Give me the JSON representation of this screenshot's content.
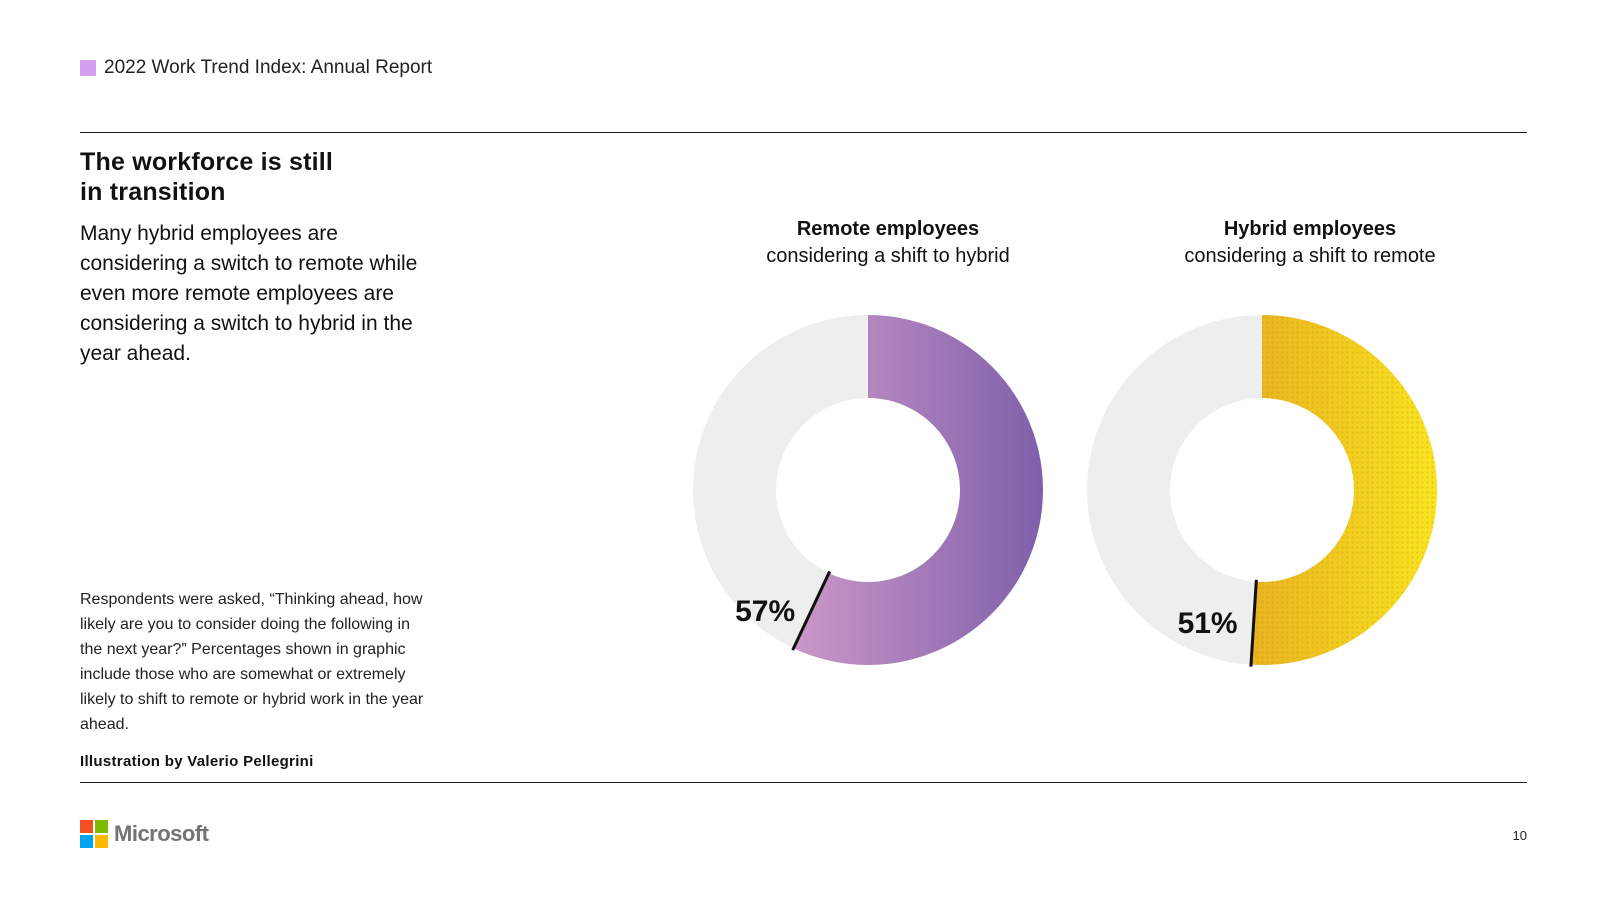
{
  "header": {
    "title": "2022 Work Trend Index: Annual Report",
    "swatch_color": "#d79ff0"
  },
  "main": {
    "heading_line1": "The workforce is still",
    "heading_line2": "in transition",
    "intro": "Many hybrid employees are considering a switch to remote while even more remote employees are considering a switch to hybrid in the year ahead.",
    "footnote": "Respondents were asked, “Thinking ahead, how likely are you to consider doing the following in the next year?” Percentages shown in graphic include those who are somewhat or extremely likely to shift to remote or hybrid work in the year ahead.",
    "credit": "Illustration by Valerio Pellegrini"
  },
  "chart_data": [
    {
      "type": "pie",
      "style": "donut",
      "title": "Remote employees",
      "subtitle": "considering a shift to hybrid",
      "value": 57,
      "label": "57%",
      "unit": "%",
      "fill_colors": [
        "#cc97c8",
        "#7e60aa"
      ],
      "track_color": "#eeeeee"
    },
    {
      "type": "pie",
      "style": "donut",
      "title": "Hybrid employees",
      "subtitle": "considering a shift to remote",
      "value": 51,
      "label": "51%",
      "unit": "%",
      "fill_colors": [
        "#e8b420",
        "#f8e420"
      ],
      "track_color": "#eeeeee"
    }
  ],
  "footer": {
    "logo_text": "Microsoft",
    "logo_colors": [
      "#f25022",
      "#7fba00",
      "#00a4ef",
      "#ffb900"
    ],
    "page_number": "10"
  }
}
